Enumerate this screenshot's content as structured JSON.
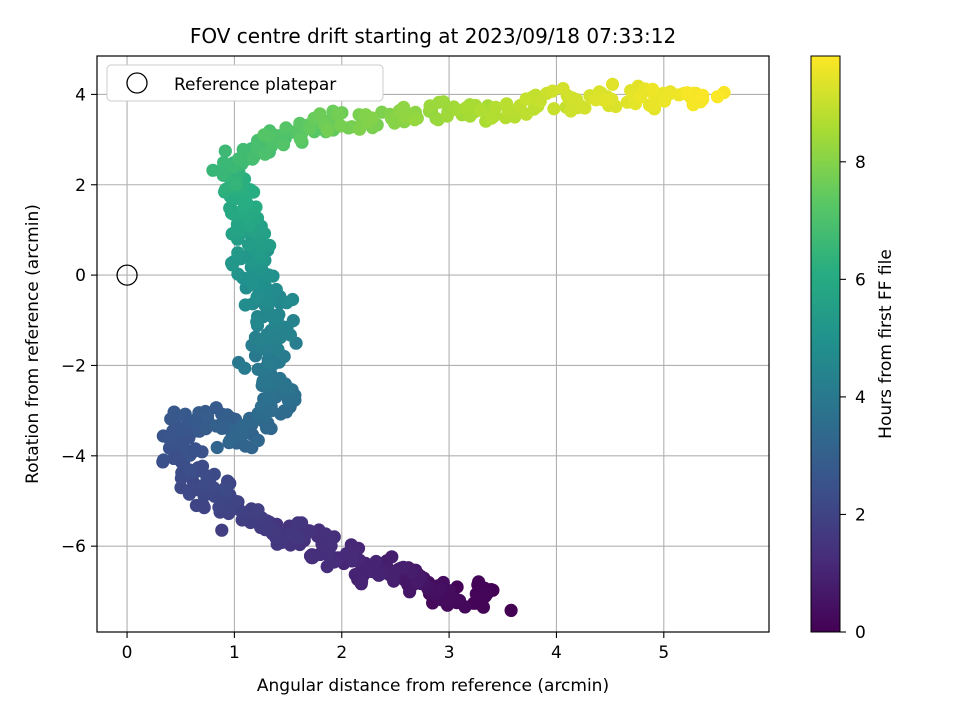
{
  "chart_data": {
    "type": "scatter",
    "title": "FOV centre drift starting at 2023/09/18 07:33:12",
    "xlabel": "Angular distance from reference (arcmin)",
    "ylabel": "Rotation from reference (arcmin)",
    "colorbar_label": "Hours from first FF file",
    "xlim": [
      -0.28,
      5.98
    ],
    "ylim": [
      -7.9,
      4.85
    ],
    "clim": [
      0,
      9.8
    ],
    "xticks": [
      0,
      1,
      2,
      3,
      4,
      5
    ],
    "yticks": [
      -6,
      -4,
      -2,
      0,
      2,
      4
    ],
    "cticks": [
      0,
      2,
      4,
      6,
      8
    ],
    "grid": true,
    "legend": {
      "position": "top-left",
      "entries": [
        "Reference platepar"
      ]
    },
    "colormap": "viridis",
    "reference_point": {
      "x": 0,
      "y": 0
    },
    "track": [
      [
        3.38,
        -7.25,
        0.0
      ],
      [
        3.4,
        -6.95,
        0.1
      ],
      [
        3.0,
        -7.2,
        0.2
      ],
      [
        2.9,
        -6.9,
        0.3
      ],
      [
        2.75,
        -6.85,
        0.45
      ],
      [
        2.65,
        -6.7,
        0.6
      ],
      [
        2.55,
        -6.55,
        0.75
      ],
      [
        2.4,
        -6.6,
        0.9
      ],
      [
        2.25,
        -6.55,
        1.0
      ],
      [
        2.1,
        -6.2,
        1.1
      ],
      [
        1.95,
        -6.15,
        1.2
      ],
      [
        1.8,
        -6.15,
        1.3
      ],
      [
        1.7,
        -5.7,
        1.4
      ],
      [
        1.55,
        -5.6,
        1.5
      ],
      [
        1.4,
        -5.75,
        1.6
      ],
      [
        1.25,
        -5.5,
        1.7
      ],
      [
        1.05,
        -5.3,
        1.85
      ],
      [
        0.9,
        -5.1,
        2.0
      ],
      [
        0.8,
        -4.8,
        2.1
      ],
      [
        0.7,
        -4.6,
        2.2
      ],
      [
        0.6,
        -4.3,
        2.3
      ],
      [
        0.5,
        -3.9,
        2.45
      ],
      [
        0.45,
        -3.6,
        2.55
      ],
      [
        0.55,
        -3.3,
        2.65
      ],
      [
        0.7,
        -3.1,
        2.8
      ],
      [
        0.9,
        -3.2,
        2.95
      ],
      [
        1.0,
        -3.5,
        3.1
      ],
      [
        1.05,
        -3.7,
        3.2
      ],
      [
        1.2,
        -3.3,
        3.3
      ],
      [
        1.35,
        -3.0,
        3.45
      ],
      [
        1.45,
        -2.7,
        3.6
      ],
      [
        1.35,
        -2.4,
        3.75
      ],
      [
        1.25,
        -2.1,
        3.9
      ],
      [
        1.3,
        -1.8,
        4.05
      ],
      [
        1.35,
        -1.5,
        4.2
      ],
      [
        1.4,
        -1.2,
        4.35
      ],
      [
        1.35,
        -0.9,
        4.5
      ],
      [
        1.3,
        -0.6,
        4.65
      ],
      [
        1.25,
        -0.3,
        4.8
      ],
      [
        1.2,
        0.0,
        4.95
      ],
      [
        1.15,
        0.25,
        5.1
      ],
      [
        1.15,
        0.55,
        5.3
      ],
      [
        1.2,
        0.85,
        5.5
      ],
      [
        1.15,
        1.15,
        5.7
      ],
      [
        1.1,
        1.45,
        5.9
      ],
      [
        1.05,
        1.75,
        6.1
      ],
      [
        1.0,
        2.05,
        6.3
      ],
      [
        0.95,
        2.35,
        6.5
      ],
      [
        1.05,
        2.6,
        6.7
      ],
      [
        1.25,
        2.85,
        6.9
      ],
      [
        1.45,
        3.05,
        7.1
      ],
      [
        1.65,
        3.25,
        7.35
      ],
      [
        1.9,
        3.4,
        7.6
      ],
      [
        2.2,
        3.4,
        7.85
      ],
      [
        2.5,
        3.45,
        8.05
      ],
      [
        2.8,
        3.55,
        8.25
      ],
      [
        3.1,
        3.65,
        8.45
      ],
      [
        3.4,
        3.6,
        8.65
      ],
      [
        3.7,
        3.75,
        8.85
      ],
      [
        4.0,
        3.9,
        9.05
      ],
      [
        4.3,
        3.95,
        9.2
      ],
      [
        4.6,
        4.0,
        9.35
      ],
      [
        4.9,
        3.95,
        9.5
      ],
      [
        5.2,
        3.95,
        9.6
      ],
      [
        5.5,
        3.95,
        9.75
      ]
    ],
    "scatter_spread": 0.14
  }
}
